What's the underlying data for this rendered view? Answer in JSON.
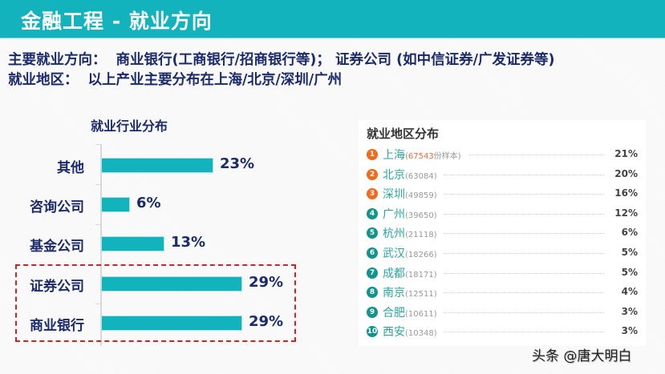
{
  "header": {
    "title": "金融工程 - 就业方向",
    "bg_color": "#12b3bd"
  },
  "intro": {
    "line1_label": "主要就业方向：",
    "line1_text": "商业银行(工商银行/招商银行等)；  证券公司 (如中信证券/广发证券等)",
    "line2_label": "就业地区：",
    "line2_text": "以上产业主要分布在上海/北京/深圳/广州"
  },
  "chart_data": [
    {
      "type": "bar",
      "orientation": "horizontal",
      "title": "就业行业分布",
      "categories": [
        "其他",
        "咨询公司",
        "基金公司",
        "证券公司",
        "商业银行"
      ],
      "values": [
        23,
        6,
        13,
        29,
        29
      ],
      "value_labels": [
        "23%",
        "6%",
        "13%",
        "29%",
        "29%"
      ],
      "unit": "%",
      "bar_color": "#12b3bd",
      "highlighted": [
        "证券公司",
        "商业银行"
      ],
      "highlight_color": "#d42027",
      "grid": false
    },
    {
      "type": "table",
      "title": "就业地区分布",
      "columns": [
        "rank",
        "city",
        "samples",
        "percent"
      ],
      "rows": [
        {
          "rank": "1",
          "city": "上海",
          "samples": "67543",
          "sample_suffix": "份样本",
          "percent": "21%",
          "value": 21,
          "badge_color": "#f26a1b"
        },
        {
          "rank": "2",
          "city": "北京",
          "samples": "63084",
          "percent": "20%",
          "value": 20,
          "badge_color": "#f26a1b"
        },
        {
          "rank": "3",
          "city": "深圳",
          "samples": "49859",
          "percent": "16%",
          "value": 16,
          "badge_color": "#f26a1b"
        },
        {
          "rank": "4",
          "city": "广州",
          "samples": "39650",
          "percent": "12%",
          "value": 12,
          "badge_color": "#12948e"
        },
        {
          "rank": "5",
          "city": "杭州",
          "samples": "21118",
          "percent": "6%",
          "value": 6,
          "badge_color": "#12948e"
        },
        {
          "rank": "6",
          "city": "武汉",
          "samples": "18266",
          "percent": "5%",
          "value": 5,
          "badge_color": "#12948e"
        },
        {
          "rank": "7",
          "city": "成都",
          "samples": "18171",
          "percent": "5%",
          "value": 5,
          "badge_color": "#12948e"
        },
        {
          "rank": "8",
          "city": "南京",
          "samples": "12511",
          "percent": "4%",
          "value": 4,
          "badge_color": "#12948e"
        },
        {
          "rank": "9",
          "city": "合肥",
          "samples": "10611",
          "percent": "3%",
          "value": 3,
          "badge_color": "#12948e"
        },
        {
          "rank": "10",
          "city": "西安",
          "samples": "10348",
          "percent": "3%",
          "value": 3,
          "badge_color": "#12948e"
        }
      ]
    }
  ],
  "watermark": "头条 @唐大明白"
}
